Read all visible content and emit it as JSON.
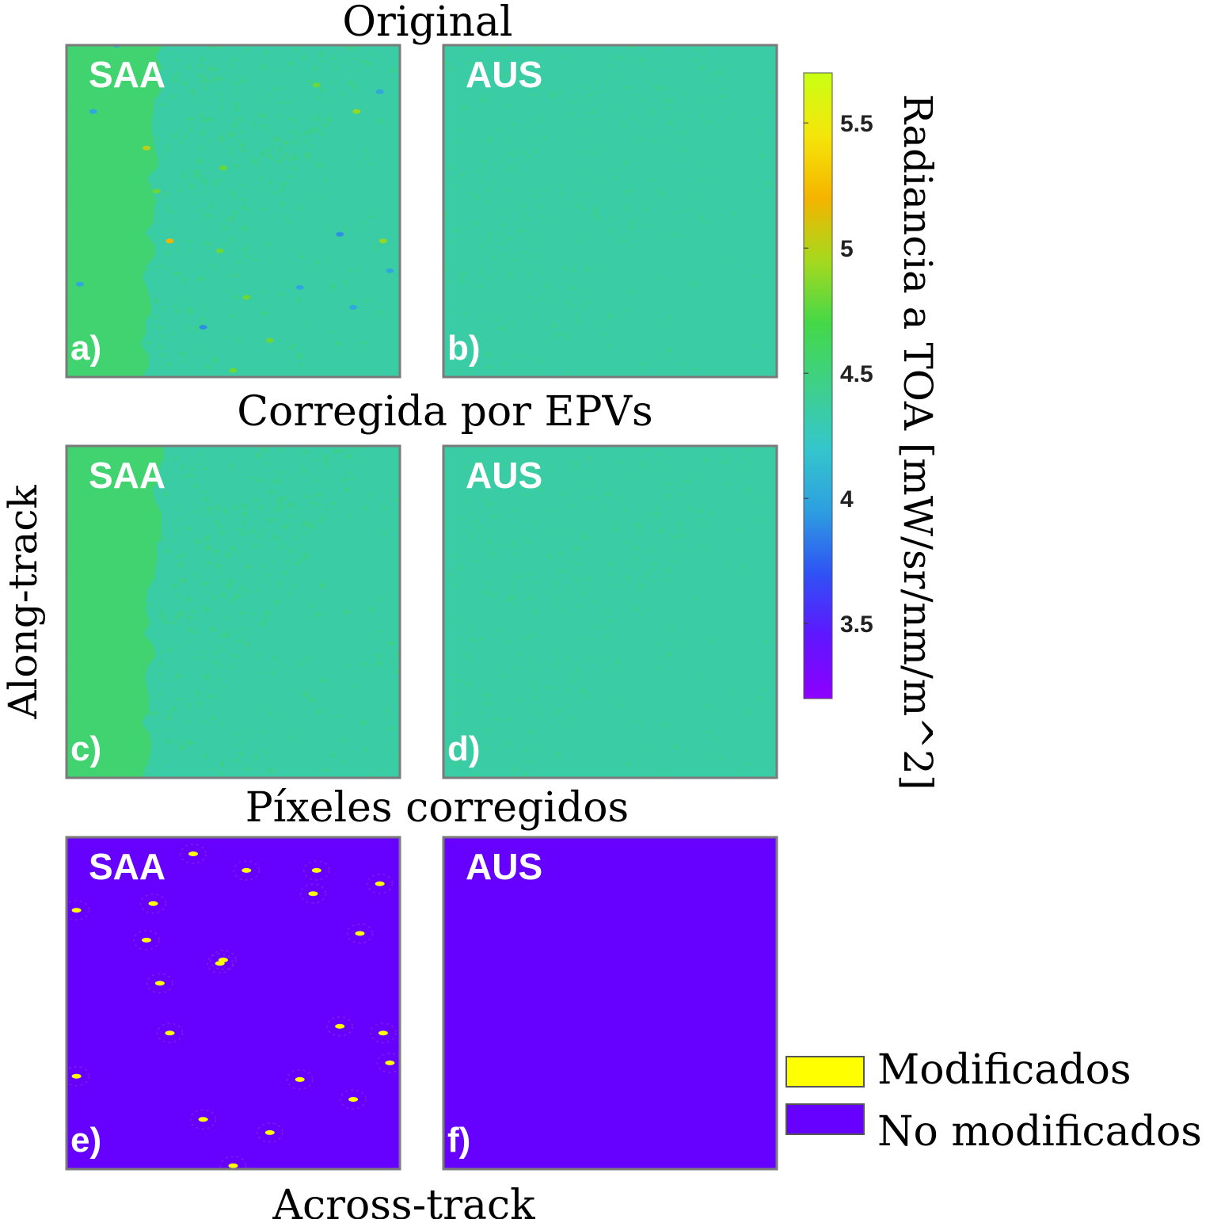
{
  "figure": {
    "row_titles": [
      "Original",
      "Corregida por EPVs",
      "Píxeles corregidos"
    ],
    "y_axis_label": "Along-track",
    "x_axis_label": "Across-track"
  },
  "chart_data": [
    {
      "type": "heatmap",
      "panel_label": "a)",
      "region": "SAA",
      "row": "Original",
      "colormap": "radiance",
      "base_value": 4.35,
      "left_band_value": 4.55,
      "speckle": "noisy",
      "hot_pixels": [
        {
          "x": 0.24,
          "y": 0.31,
          "value": 5.0
        },
        {
          "x": 0.31,
          "y": 0.59,
          "value": 5.2
        },
        {
          "x": 0.47,
          "y": 0.37,
          "value": 4.8
        },
        {
          "x": 0.08,
          "y": 0.2,
          "value": 4.0
        },
        {
          "x": 0.82,
          "y": 0.57,
          "value": 3.9
        },
        {
          "x": 0.95,
          "y": 0.59,
          "value": 4.9
        },
        {
          "x": 0.04,
          "y": 0.72,
          "value": 4.0
        },
        {
          "x": 0.7,
          "y": 0.73,
          "value": 4.0
        },
        {
          "x": 0.41,
          "y": 0.85,
          "value": 3.9
        },
        {
          "x": 0.86,
          "y": 0.79,
          "value": 4.0
        },
        {
          "x": 0.61,
          "y": 0.89,
          "value": 4.8
        },
        {
          "x": 0.75,
          "y": 0.12,
          "value": 4.8
        },
        {
          "x": 0.94,
          "y": 0.14,
          "value": 4.0
        },
        {
          "x": 0.97,
          "y": 0.68,
          "value": 4.0
        },
        {
          "x": 0.54,
          "y": 0.76,
          "value": 4.8
        },
        {
          "x": 0.87,
          "y": 0.2,
          "value": 4.9
        },
        {
          "x": 0.46,
          "y": 0.62,
          "value": 4.8
        },
        {
          "x": 0.27,
          "y": 0.44,
          "value": 4.8
        },
        {
          "x": 0.5,
          "y": 0.98,
          "value": 4.8
        },
        {
          "x": 0.15,
          "y": 0.0,
          "value": 4.0
        }
      ]
    },
    {
      "type": "heatmap",
      "panel_label": "b)",
      "region": "AUS",
      "row": "Original",
      "colormap": "radiance",
      "base_value": 4.35,
      "left_band_value": 4.35,
      "speckle": "light",
      "hot_pixels": []
    },
    {
      "type": "heatmap",
      "panel_label": "c)",
      "region": "SAA",
      "row": "Corregida por EPVs",
      "colormap": "radiance",
      "base_value": 4.35,
      "left_band_value": 4.55,
      "speckle": "noisy",
      "hot_pixels": []
    },
    {
      "type": "heatmap",
      "panel_label": "d)",
      "region": "AUS",
      "row": "Corregida por EPVs",
      "colormap": "radiance",
      "base_value": 4.35,
      "left_band_value": 4.35,
      "speckle": "light",
      "hot_pixels": []
    },
    {
      "type": "heatmap",
      "panel_label": "e)",
      "region": "SAA",
      "row": "Píxeles corregidos",
      "colormap": "binary",
      "modified_pixels": [
        {
          "x": 0.24,
          "y": 0.31
        },
        {
          "x": 0.31,
          "y": 0.59
        },
        {
          "x": 0.47,
          "y": 0.37
        },
        {
          "x": 0.54,
          "y": 0.1
        },
        {
          "x": 0.82,
          "y": 0.57
        },
        {
          "x": 0.95,
          "y": 0.59
        },
        {
          "x": 0.03,
          "y": 0.72
        },
        {
          "x": 0.7,
          "y": 0.73
        },
        {
          "x": 0.41,
          "y": 0.85
        },
        {
          "x": 0.86,
          "y": 0.79
        },
        {
          "x": 0.61,
          "y": 0.89
        },
        {
          "x": 0.75,
          "y": 0.1
        },
        {
          "x": 0.94,
          "y": 0.14
        },
        {
          "x": 0.97,
          "y": 0.68
        },
        {
          "x": 0.26,
          "y": 0.2
        },
        {
          "x": 0.28,
          "y": 0.44
        },
        {
          "x": 0.46,
          "y": 0.38
        },
        {
          "x": 0.03,
          "y": 0.22
        },
        {
          "x": 0.88,
          "y": 0.29
        },
        {
          "x": 0.5,
          "y": 0.99
        },
        {
          "x": 0.38,
          "y": 0.05
        },
        {
          "x": 0.74,
          "y": 0.17
        }
      ]
    },
    {
      "type": "heatmap",
      "panel_label": "f)",
      "region": "AUS",
      "row": "Píxeles corregidos",
      "colormap": "binary",
      "modified_pixels": []
    }
  ],
  "colorbar": {
    "label": "Radiancia a TOA [mW/sr/nm/m^2]",
    "vmin": 3.2,
    "vmax": 5.7,
    "ticks": [
      5.5,
      5,
      4.5,
      4,
      3.5
    ],
    "tick_labels": [
      "5.5",
      "5",
      "4.5",
      "4",
      "3.5"
    ],
    "stops": [
      "#8f00ff",
      "#5f16ff",
      "#2f52f5",
      "#2d9fe0",
      "#35c6cc",
      "#3ed08a",
      "#44d848",
      "#a6d91e",
      "#f5b400",
      "#f5e60a",
      "#c9ff14"
    ]
  },
  "legend": {
    "items": [
      {
        "label": "Modificados",
        "color": "#ffff00"
      },
      {
        "label": "No modificados",
        "color": "#6600ff"
      }
    ]
  },
  "colors": {
    "panel_border": "#7a7a7a",
    "binary_background": "#6600ff",
    "binary_modified": "#ffff00",
    "panel_text": "#ffffff"
  }
}
